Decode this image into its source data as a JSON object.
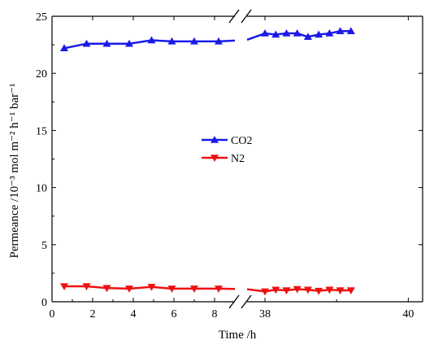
{
  "chart_data": {
    "type": "line",
    "xlabel": "Time /h",
    "ylabel": "Permeance /10⁻³ mol m⁻² h⁻¹ bar⁻¹",
    "ylim": [
      0,
      25
    ],
    "y_ticks": [
      "0",
      "5",
      "10",
      "15",
      "20",
      "25"
    ],
    "x_axis_break": true,
    "x_segments": [
      {
        "range": [
          0,
          9
        ],
        "ticks": [
          "0",
          "2",
          "4",
          "6",
          "8"
        ]
      },
      {
        "range": [
          37.75,
          40.2
        ],
        "ticks": [
          "38",
          "40"
        ]
      }
    ],
    "legend_position": "center-left",
    "series": [
      {
        "name": "CO2",
        "marker": "triangle-up",
        "color": "#1a1aeb",
        "segments": [
          {
            "x": [
              0.6,
              1.7,
              2.7,
              3.8,
              4.9,
              5.9,
              7.0,
              8.2
            ],
            "y": [
              22.2,
              22.6,
              22.6,
              22.6,
              22.9,
              22.8,
              22.8,
              22.8
            ]
          },
          {
            "x": [
              38.0,
              38.15,
              38.3,
              38.45,
              38.6,
              38.75,
              38.9,
              39.05,
              39.2
            ],
            "y": [
              23.5,
              23.4,
              23.5,
              23.5,
              23.2,
              23.4,
              23.5,
              23.7,
              23.7
            ]
          }
        ]
      },
      {
        "name": "N2",
        "marker": "triangle-down",
        "color": "#ee1111",
        "segments": [
          {
            "x": [
              0.6,
              1.7,
              2.7,
              3.8,
              4.9,
              5.9,
              7.0,
              8.2
            ],
            "y": [
              1.35,
              1.35,
              1.2,
              1.15,
              1.3,
              1.15,
              1.15,
              1.15
            ]
          },
          {
            "x": [
              38.0,
              38.15,
              38.3,
              38.45,
              38.6,
              38.75,
              38.9,
              39.05,
              39.2
            ],
            "y": [
              0.9,
              1.05,
              1.0,
              1.1,
              1.05,
              0.95,
              1.05,
              1.0,
              1.0
            ]
          }
        ]
      }
    ]
  }
}
